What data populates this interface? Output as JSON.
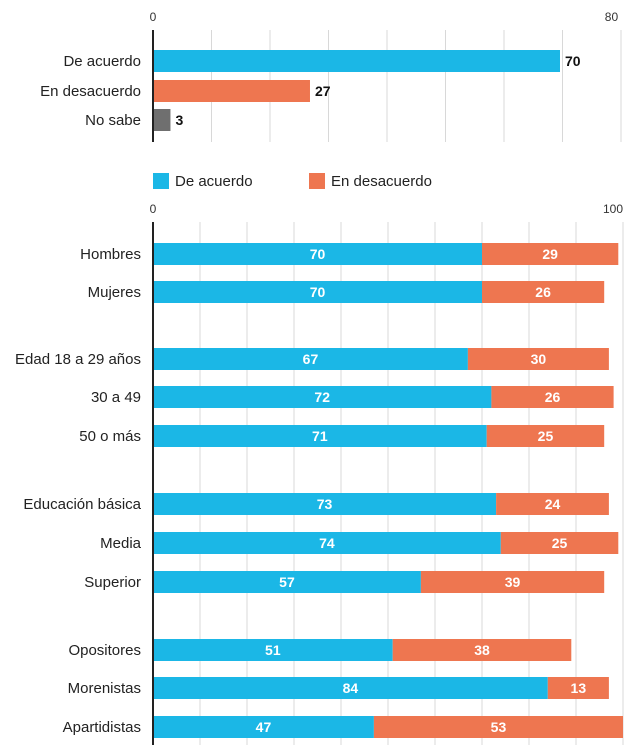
{
  "colors": {
    "agree": "#1bb7e6",
    "disagree": "#ee7650",
    "unknown": "#6f6f6f",
    "grid": "#d8d8d8",
    "axis": "#222222"
  },
  "chart_data": [
    {
      "type": "bar",
      "orientation": "horizontal",
      "xlim": [
        0,
        80
      ],
      "ticks": [
        "0",
        "80"
      ],
      "categories": [
        "De acuerdo",
        "En desacuerdo",
        "No sabe"
      ],
      "values": [
        70,
        27,
        3
      ],
      "value_labels": [
        "70",
        "27",
        "3"
      ],
      "grid": true
    },
    {
      "type": "bar",
      "orientation": "horizontal",
      "stacked": true,
      "xlim": [
        0,
        100
      ],
      "ticks": [
        "0",
        "100"
      ],
      "legend": {
        "position": "top",
        "entries": [
          "De acuerdo",
          "En desacuerdo"
        ]
      },
      "categories": [
        "Hombres",
        "Mujeres",
        "Edad 18 a 29 años",
        "30 a 49",
        "50 o más",
        "Educación básica",
        "Media",
        "Superior",
        "Opositores",
        "Morenistas",
        "Apartidistas"
      ],
      "series": [
        {
          "name": "De acuerdo",
          "values": [
            70,
            70,
            67,
            72,
            71,
            73,
            74,
            57,
            51,
            84,
            47
          ]
        },
        {
          "name": "En desacuerdo",
          "values": [
            29,
            26,
            30,
            26,
            25,
            24,
            25,
            39,
            38,
            13,
            53
          ]
        }
      ],
      "grid": true
    }
  ]
}
